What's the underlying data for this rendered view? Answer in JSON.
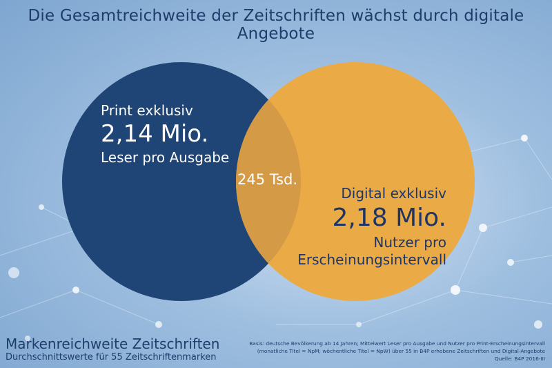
{
  "title": "Die Gesamtreichweite der Zeitschriften wächst durch digitale Angebote",
  "colors": {
    "print_circle": "#1f4476",
    "digital_circle": "#eaaa45",
    "overlap": "#d49a45",
    "title_text": "#1f3c6b"
  },
  "print": {
    "label": "Print exklusiv",
    "value": "2,14 Mio.",
    "unit": "Leser pro Ausgabe"
  },
  "overlap": {
    "value": "245 Tsd."
  },
  "digital": {
    "label": "Digital exklusiv",
    "value": "2,18 Mio.",
    "unit_line1": "Nutzer pro",
    "unit_line2": "Erscheinungsintervall"
  },
  "footer": {
    "title": "Markenreichweite Zeitschriften",
    "subtitle": "Durchschnittswerte für 55 Zeitschriftenmarken"
  },
  "note": {
    "line1": "Basis: deutsche Bevölkerung ab 14 Jahren; Mittelwert Leser pro Ausgabe und Nutzer pro Print-Erscheinungsintervall",
    "line2": "(monatliche Titel = NpM; wöchentliche Titel = NpW) über 55 in B4P erhobene Zeitschriften und Digital-Angebote",
    "line3": "Quelle: B4P 2016-III"
  }
}
